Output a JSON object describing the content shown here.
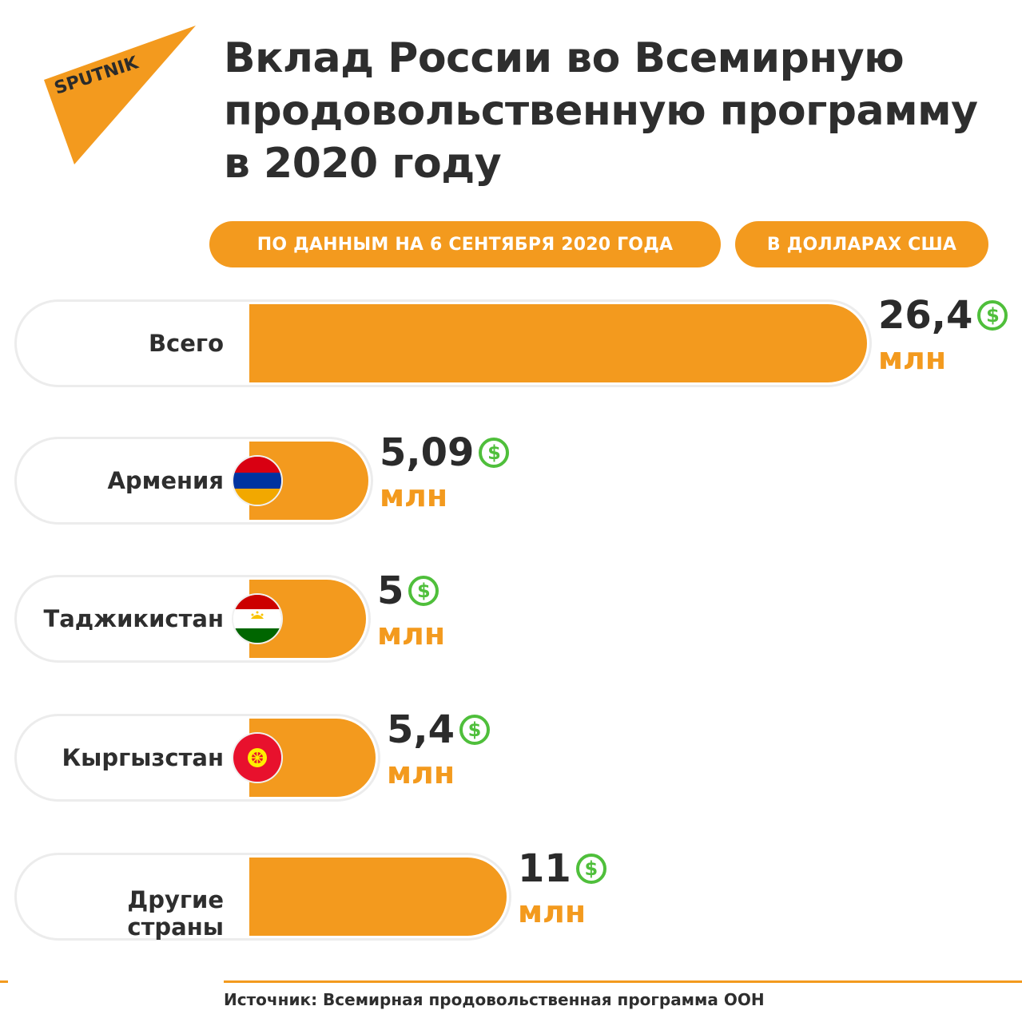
{
  "logo": {
    "text": "SPUTNIK",
    "color": "#f39a1e"
  },
  "title": "Вклад России во Всемирную продовольственную программу в 2020 году",
  "pills": {
    "date": "ПО ДАННЫМ НА 6 СЕНТЯБРЯ 2020 ГОДА",
    "currency": "В ДОЛЛАРАХ США"
  },
  "chart_data": {
    "type": "bar",
    "orientation": "horizontal",
    "categories": [
      "Всего",
      "Армения",
      "Таджикистан",
      "Кыргызстан",
      "Другие страны"
    ],
    "values": [
      26.4,
      5.09,
      5,
      5.4,
      11
    ],
    "value_labels": [
      "26,4",
      "5,09",
      "5",
      "5,4",
      "11"
    ],
    "unit_label": "млн",
    "currency_icon": "dollar-icon",
    "bar_color": "#f39a1e",
    "icon_color": "#4fbf3b",
    "flags": [
      "",
      "armenia-flag-icon",
      "tajikistan-flag-icon",
      "kyrgyzstan-flag-icon",
      ""
    ]
  },
  "source": "Источник: Всемирная продовольственная программа ООН"
}
